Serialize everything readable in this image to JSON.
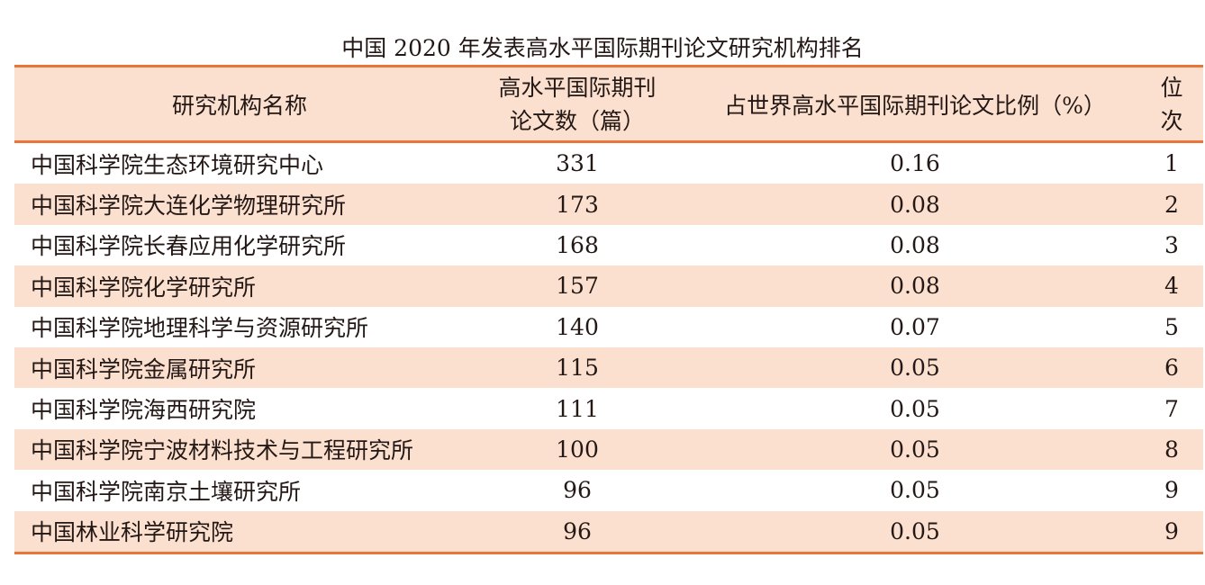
{
  "title": "中国 2020 年发表高水平国际期刊论文研究机构排名",
  "colors": {
    "accent": "#e8753a",
    "row_tint": "#fce0cf"
  },
  "headers": {
    "name": "研究机构名称",
    "count_line1": "高水平国际期刊",
    "count_line2": "论文数（篇）",
    "share": "占世界高水平国际期刊论文比例（%）",
    "rank_line1": "位",
    "rank_line2": "次"
  },
  "rows": [
    {
      "name": "中国科学院生态环境研究中心",
      "count": "331",
      "share": "0.16",
      "rank": "1"
    },
    {
      "name": "中国科学院大连化学物理研究所",
      "count": "173",
      "share": "0.08",
      "rank": "2"
    },
    {
      "name": "中国科学院长春应用化学研究所",
      "count": "168",
      "share": "0.08",
      "rank": "3"
    },
    {
      "name": "中国科学院化学研究所",
      "count": "157",
      "share": "0.08",
      "rank": "4"
    },
    {
      "name": "中国科学院地理科学与资源研究所",
      "count": "140",
      "share": "0.07",
      "rank": "5"
    },
    {
      "name": "中国科学院金属研究所",
      "count": "115",
      "share": "0.05",
      "rank": "6"
    },
    {
      "name": "中国科学院海西研究院",
      "count": "111",
      "share": "0.05",
      "rank": "7"
    },
    {
      "name": "中国科学院宁波材料技术与工程研究所",
      "count": "100",
      "share": "0.05",
      "rank": "8"
    },
    {
      "name": "中国科学院南京土壤研究所",
      "count": "96",
      "share": "0.05",
      "rank": "9"
    },
    {
      "name": "中国林业科学研究院",
      "count": "96",
      "share": "0.05",
      "rank": "9"
    }
  ]
}
